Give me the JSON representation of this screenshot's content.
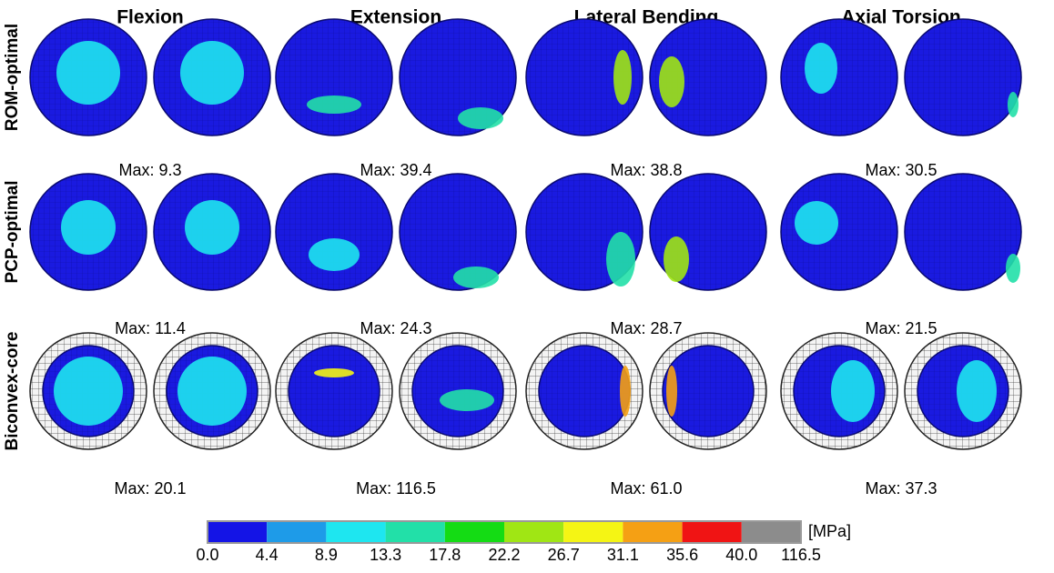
{
  "columns": [
    "Flexion",
    "Extension",
    "Lateral Bending",
    "Axial Torsion"
  ],
  "rows": [
    {
      "label": "ROM-optimal",
      "max": [
        "Max: 9.3",
        "Max: 39.4",
        "Max: 38.8",
        "Max: 30.5"
      ]
    },
    {
      "label": "PCP-optimal",
      "max": [
        "Max: 11.4",
        "Max: 24.3",
        "Max: 28.7",
        "Max: 21.5"
      ]
    },
    {
      "label": "Biconvex-core",
      "max": [
        "Max: 20.1",
        "Max: 116.5",
        "Max: 61.0",
        "Max: 37.3"
      ]
    }
  ],
  "colorbar": {
    "unit": "[MPa]",
    "colors": [
      "#1414e6",
      "#1e9be8",
      "#1ee6f0",
      "#22e0a8",
      "#14dc14",
      "#a0e614",
      "#f5f514",
      "#f5a014",
      "#f01414",
      "#8c8c8c"
    ],
    "ticks": [
      "0.0",
      "4.4",
      "8.9",
      "13.3",
      "17.8",
      "22.2",
      "26.7",
      "31.1",
      "35.6",
      "40.0",
      "116.5"
    ]
  }
}
